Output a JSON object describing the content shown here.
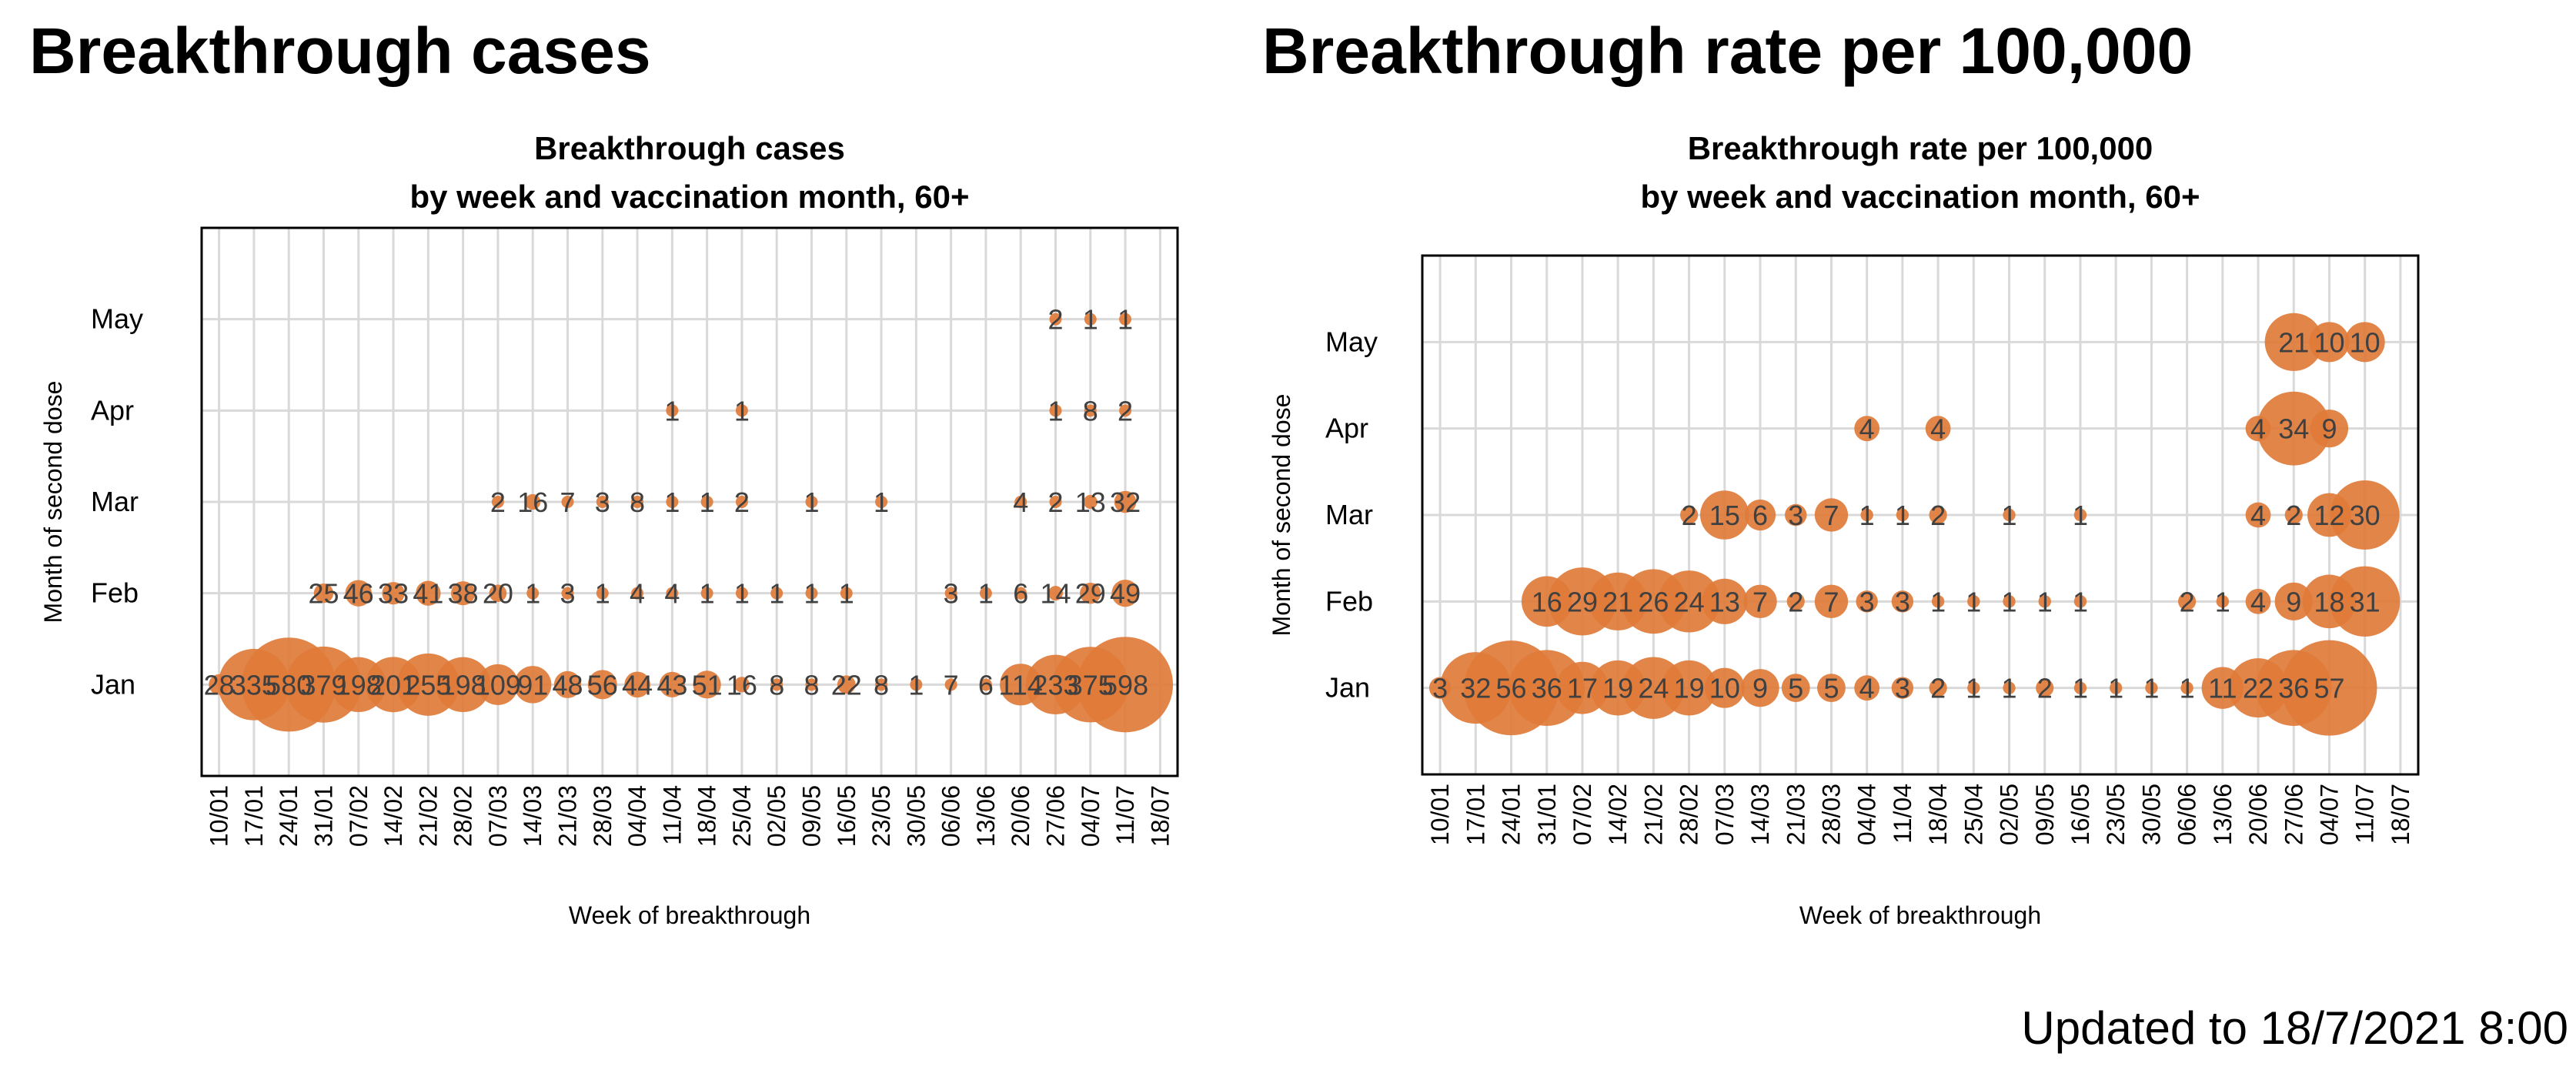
{
  "page": {
    "title_left": "Breakthrough cases",
    "title_right": "Breakthrough rate per 100,000",
    "footer": "Updated to 18/7/2021 8:00"
  },
  "chart_data": [
    {
      "type": "scatter",
      "subtype": "bubble",
      "title": "Breakthrough cases",
      "subtitle": "by week and vaccination month, 60+",
      "xlabel": "Week of breakthrough",
      "ylabel": "Month of second dose",
      "x_categories": [
        "10/01",
        "17/01",
        "24/01",
        "31/01",
        "07/02",
        "14/02",
        "21/02",
        "28/02",
        "07/03",
        "14/03",
        "21/03",
        "28/03",
        "04/04",
        "11/04",
        "18/04",
        "25/04",
        "02/05",
        "09/05",
        "16/05",
        "23/05",
        "30/05",
        "06/06",
        "13/06",
        "20/06",
        "27/06",
        "04/07",
        "11/07",
        "18/07"
      ],
      "y_categories": [
        "Jan",
        "Feb",
        "Mar",
        "Apr",
        "May"
      ],
      "series": [
        {
          "name": "Jan",
          "values": [
            28,
            335,
            580,
            379,
            198,
            201,
            255,
            198,
            109,
            91,
            48,
            56,
            44,
            43,
            51,
            16,
            8,
            8,
            22,
            8,
            1,
            7,
            6,
            114,
            233,
            375,
            598,
            null
          ]
        },
        {
          "name": "Feb",
          "values": [
            null,
            null,
            null,
            25,
            46,
            33,
            41,
            38,
            20,
            1,
            3,
            1,
            4,
            4,
            1,
            1,
            1,
            1,
            1,
            null,
            null,
            3,
            1,
            6,
            14,
            29,
            49,
            null
          ]
        },
        {
          "name": "Mar",
          "values": [
            null,
            null,
            null,
            null,
            null,
            null,
            null,
            null,
            2,
            16,
            7,
            3,
            8,
            1,
            1,
            2,
            null,
            1,
            null,
            1,
            null,
            null,
            null,
            4,
            2,
            13,
            32,
            null
          ]
        },
        {
          "name": "Apr",
          "values": [
            null,
            null,
            null,
            null,
            null,
            null,
            null,
            null,
            null,
            null,
            null,
            null,
            null,
            1,
            null,
            1,
            null,
            null,
            null,
            null,
            null,
            null,
            null,
            null,
            1,
            8,
            2,
            null
          ]
        },
        {
          "name": "May",
          "values": [
            null,
            null,
            null,
            null,
            null,
            null,
            null,
            null,
            null,
            null,
            null,
            null,
            null,
            null,
            null,
            null,
            null,
            null,
            null,
            null,
            null,
            null,
            null,
            null,
            2,
            1,
            1,
            null
          ]
        }
      ]
    },
    {
      "type": "scatter",
      "subtype": "bubble",
      "title": "Breakthrough rate per 100,000",
      "subtitle": "by week and vaccination month, 60+",
      "xlabel": "Week of breakthrough",
      "ylabel": "Month of second dose",
      "x_categories": [
        "10/01",
        "17/01",
        "24/01",
        "31/01",
        "07/02",
        "14/02",
        "21/02",
        "28/02",
        "07/03",
        "14/03",
        "21/03",
        "28/03",
        "04/04",
        "11/04",
        "18/04",
        "25/04",
        "02/05",
        "09/05",
        "16/05",
        "23/05",
        "30/05",
        "06/06",
        "13/06",
        "20/06",
        "27/06",
        "04/07",
        "11/07",
        "18/07"
      ],
      "y_categories": [
        "Jan",
        "Feb",
        "Mar",
        "Apr",
        "May"
      ],
      "series": [
        {
          "name": "Jan",
          "values": [
            3,
            32,
            56,
            36,
            17,
            19,
            24,
            19,
            10,
            9,
            5,
            5,
            4,
            3,
            2,
            1,
            1,
            2,
            1,
            1,
            1,
            1,
            11,
            22,
            36,
            57,
            null,
            null
          ]
        },
        {
          "name": "Feb",
          "values": [
            null,
            null,
            null,
            16,
            29,
            21,
            26,
            24,
            13,
            7,
            2,
            7,
            3,
            3,
            1,
            1,
            1,
            1,
            1,
            null,
            null,
            2,
            1,
            4,
            9,
            18,
            31,
            null
          ]
        },
        {
          "name": "Mar",
          "values": [
            null,
            null,
            null,
            null,
            null,
            null,
            null,
            2,
            15,
            6,
            3,
            7,
            1,
            1,
            2,
            null,
            1,
            null,
            1,
            null,
            null,
            null,
            null,
            4,
            2,
            12,
            30,
            null
          ]
        },
        {
          "name": "Apr",
          "values": [
            null,
            null,
            null,
            null,
            null,
            null,
            null,
            null,
            null,
            null,
            null,
            null,
            4,
            null,
            4,
            null,
            null,
            null,
            null,
            null,
            null,
            null,
            null,
            4,
            34,
            9,
            null,
            null
          ]
        },
        {
          "name": "May",
          "values": [
            null,
            null,
            null,
            null,
            null,
            null,
            null,
            null,
            null,
            null,
            null,
            null,
            null,
            null,
            null,
            null,
            null,
            null,
            null,
            null,
            null,
            null,
            null,
            null,
            21,
            10,
            10,
            null
          ]
        }
      ]
    }
  ]
}
